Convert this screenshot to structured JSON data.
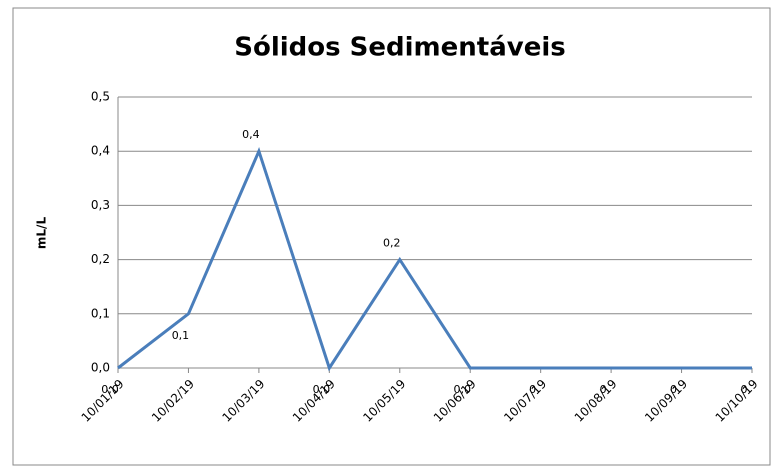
{
  "chart_data": {
    "type": "line",
    "title": "Sólidos Sedimentáveis",
    "y_label": "mL/L",
    "categories": [
      "10/01/19",
      "10/02/19",
      "10/03/19",
      "10/04/19",
      "10/05/19",
      "10/06/19",
      "10/07/19",
      "10/08/19",
      "10/09/19",
      "10/10/19"
    ],
    "series": [
      {
        "name": "mL/L",
        "color": "#4a7ebb",
        "values": [
          0,
          0.1,
          0.4,
          0,
          0.2,
          0,
          0,
          0,
          0,
          0
        ],
        "value_labels": [
          "0,0",
          "0,1",
          "0,4",
          "0,0",
          "0,2",
          "0,0",
          "0",
          "0",
          "0",
          "0"
        ]
      }
    ],
    "ylim": [
      0,
      0.5
    ],
    "yticks": [
      {
        "value": 0,
        "label": "0,0"
      },
      {
        "value": 0.1,
        "label": "0,1"
      },
      {
        "value": 0.2,
        "label": "0,2"
      },
      {
        "value": 0.3,
        "label": "0,3"
      },
      {
        "value": 0.4,
        "label": "0,4"
      },
      {
        "value": 0.5,
        "label": "0,5"
      }
    ],
    "grid": true
  }
}
